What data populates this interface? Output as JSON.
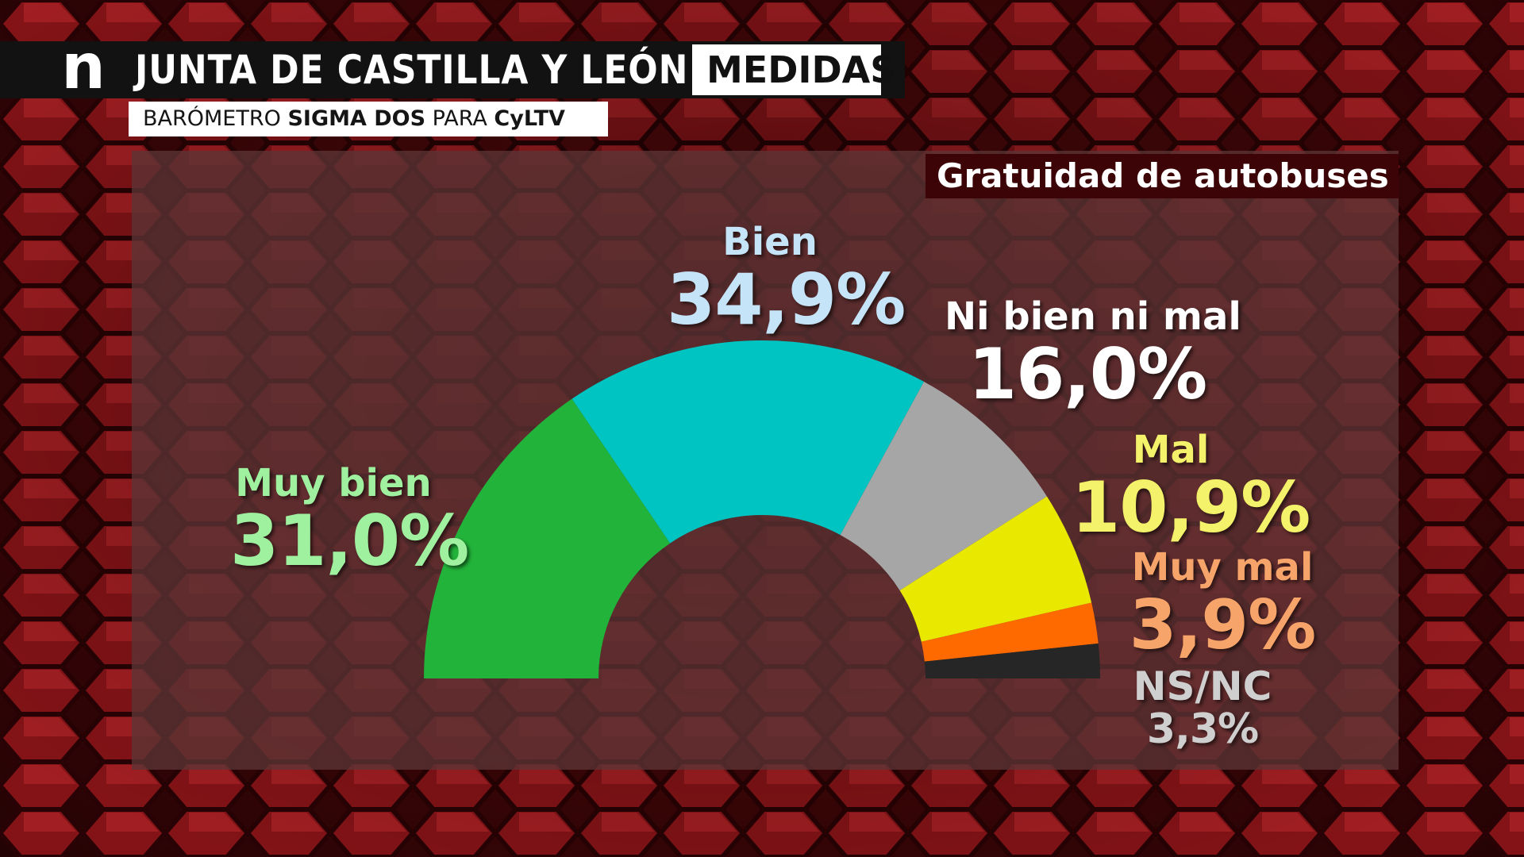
{
  "header": {
    "logo": "n",
    "title": "JUNTA DE CASTILLA Y LEÓN",
    "section": "MEDIDAS",
    "subtitle_parts": [
      "BARÓMETRO ",
      "SIGMA DOS",
      " PARA ",
      "CyLTV"
    ]
  },
  "colors": {
    "muy_bien": "#22b33a",
    "bien": "#00c4c2",
    "ni_bien_ni_mal": "#a6a6a6",
    "mal": "#e8e800",
    "muy_mal": "#ff6a00",
    "ns_nc": "#262626"
  },
  "chart_data": {
    "type": "pie",
    "title": "Gratuidad de autobuses",
    "layout": "semicircle-donut",
    "categories": [
      "Muy bien",
      "Bien",
      "Ni bien ni mal",
      "Mal",
      "Muy mal",
      "NS/NC"
    ],
    "values": [
      31.0,
      34.9,
      16.0,
      10.9,
      3.9,
      3.3
    ],
    "value_labels": [
      "31,0%",
      "34,9%",
      "16,0%",
      "10,9%",
      "3,9%",
      "3,3%"
    ],
    "label_colors": [
      "#9ff19f",
      "#c6e4f7",
      "#ffffff",
      "#f4f16a",
      "#f7a46a",
      "#cfcfcf"
    ]
  }
}
